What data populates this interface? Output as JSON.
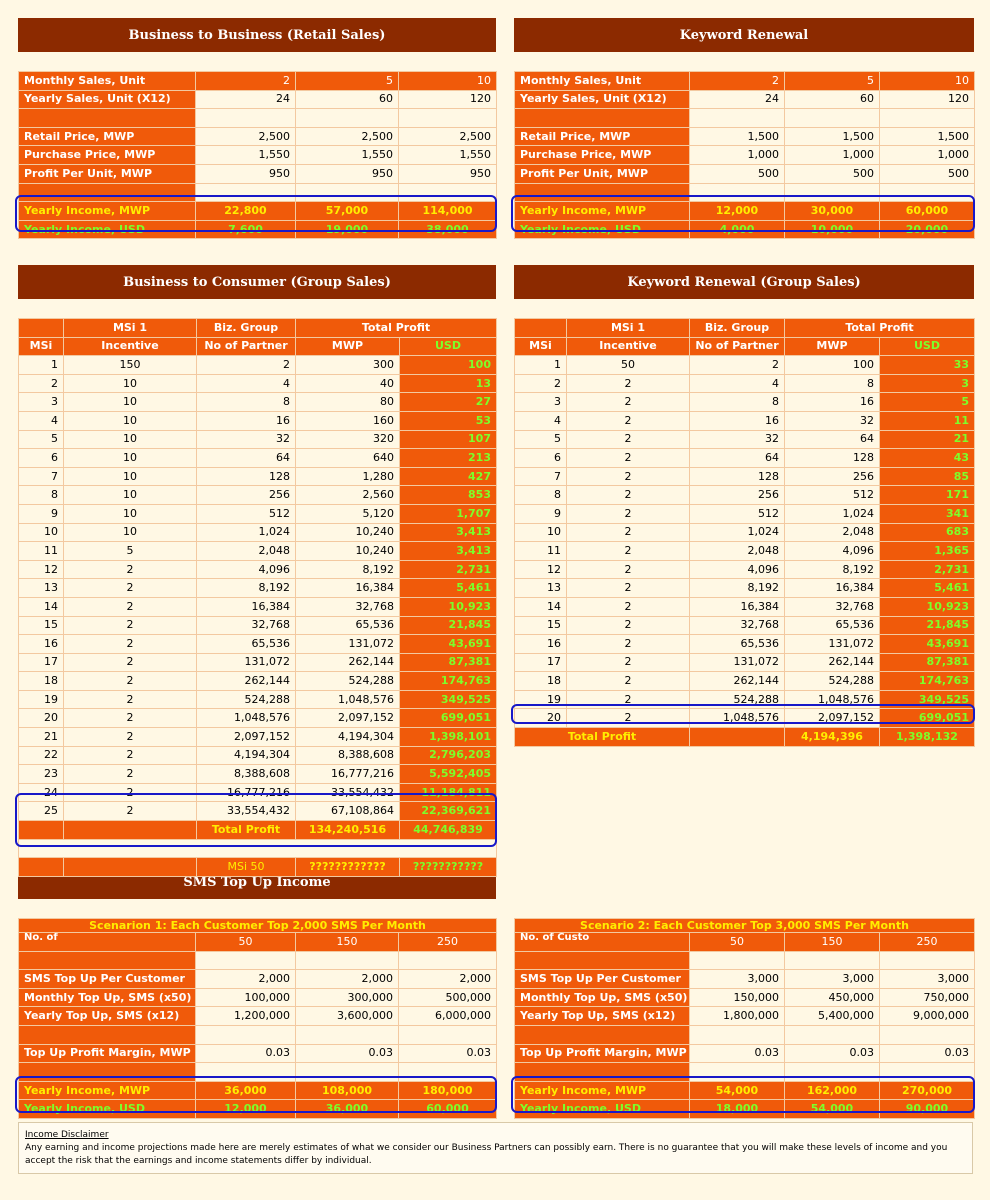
{
  "titles": {
    "b2b": "Business to Business (Retail Sales)",
    "kw": "Keyword Renewal",
    "b2c": "Business to Consumer (Group Sales)",
    "kwg": "Keyword Renewal (Group Sales)",
    "sms": "SMS Top Up Income"
  },
  "b2b": {
    "monthly_label": "Monthly Sales, Unit",
    "monthly": [
      "2",
      "5",
      "10"
    ],
    "yearly_label": "Yearly Sales, Unit (X12)",
    "yearly": [
      "24",
      "60",
      "120"
    ],
    "retail_label": "Retail Price, MWP",
    "retail": [
      "2,500",
      "2,500",
      "2,500"
    ],
    "purchase_label": "Purchase Price, MWP",
    "purchase": [
      "1,550",
      "1,550",
      "1,550"
    ],
    "profit_label": "Profit Per Unit, MWP",
    "profit": [
      "950",
      "950",
      "950"
    ],
    "inc_mwp_label": "Yearly Income, MWP",
    "inc_mwp": [
      "22,800",
      "57,000",
      "114,000"
    ],
    "inc_usd_label": "Yearly Income, USD",
    "inc_usd": [
      "7,600",
      "19,000",
      "38,000"
    ]
  },
  "kw": {
    "monthly_label": "Monthly Sales, Unit",
    "monthly": [
      "2",
      "5",
      "10"
    ],
    "yearly_label": "Yearly Sales, Unit (X12)",
    "yearly": [
      "24",
      "60",
      "120"
    ],
    "retail_label": "Retail Price, MWP",
    "retail": [
      "1,500",
      "1,500",
      "1,500"
    ],
    "purchase_label": "Purchase Price, MWP",
    "purchase": [
      "1,000",
      "1,000",
      "1,000"
    ],
    "profit_label": "Profit Per Unit, MWP",
    "profit": [
      "500",
      "500",
      "500"
    ],
    "inc_mwp_label": "Yearly Income, MWP",
    "inc_mwp": [
      "12,000",
      "30,000",
      "60,000"
    ],
    "inc_usd_label": "Yearly Income, USD",
    "inc_usd": [
      "4,000",
      "10,000",
      "20,000"
    ]
  },
  "group_headers": {
    "msi": "MSi",
    "msi1": "MSi 1",
    "incentive": "Incentive",
    "biz": "Biz. Group",
    "partner": "No of Partner",
    "total": "Total Profit",
    "mwp": "MWP",
    "usd": "USD"
  },
  "b2c_rows": [
    [
      "1",
      "150",
      "2",
      "300",
      "100"
    ],
    [
      "2",
      "10",
      "4",
      "40",
      "13"
    ],
    [
      "3",
      "10",
      "8",
      "80",
      "27"
    ],
    [
      "4",
      "10",
      "16",
      "160",
      "53"
    ],
    [
      "5",
      "10",
      "32",
      "320",
      "107"
    ],
    [
      "6",
      "10",
      "64",
      "640",
      "213"
    ],
    [
      "7",
      "10",
      "128",
      "1,280",
      "427"
    ],
    [
      "8",
      "10",
      "256",
      "2,560",
      "853"
    ],
    [
      "9",
      "10",
      "512",
      "5,120",
      "1,707"
    ],
    [
      "10",
      "10",
      "1,024",
      "10,240",
      "3,413"
    ],
    [
      "11",
      "5",
      "2,048",
      "10,240",
      "3,413"
    ],
    [
      "12",
      "2",
      "4,096",
      "8,192",
      "2,731"
    ],
    [
      "13",
      "2",
      "8,192",
      "16,384",
      "5,461"
    ],
    [
      "14",
      "2",
      "16,384",
      "32,768",
      "10,923"
    ],
    [
      "15",
      "2",
      "32,768",
      "65,536",
      "21,845"
    ],
    [
      "16",
      "2",
      "65,536",
      "131,072",
      "43,691"
    ],
    [
      "17",
      "2",
      "131,072",
      "262,144",
      "87,381"
    ],
    [
      "18",
      "2",
      "262,144",
      "524,288",
      "174,763"
    ],
    [
      "19",
      "2",
      "524,288",
      "1,048,576",
      "349,525"
    ],
    [
      "20",
      "2",
      "1,048,576",
      "2,097,152",
      "699,051"
    ],
    [
      "21",
      "2",
      "2,097,152",
      "4,194,304",
      "1,398,101"
    ],
    [
      "22",
      "2",
      "4,194,304",
      "8,388,608",
      "2,796,203"
    ],
    [
      "23",
      "2",
      "8,388,608",
      "16,777,216",
      "5,592,405"
    ],
    [
      "24",
      "2",
      "16,777,216",
      "33,554,432",
      "11,184,811"
    ],
    [
      "25",
      "2",
      "33,554,432",
      "67,108,864",
      "22,369,621"
    ]
  ],
  "b2c_totals": {
    "total_label": "Total Profit",
    "total_mwp": "134,240,516",
    "total_usd": "44,746,839",
    "msi50_label": "MSi 50",
    "msi50_mwp": "????????????",
    "msi50_usd": "???????????"
  },
  "kwg_rows": [
    [
      "1",
      "50",
      "2",
      "100",
      "33"
    ],
    [
      "2",
      "2",
      "4",
      "8",
      "3"
    ],
    [
      "3",
      "2",
      "8",
      "16",
      "5"
    ],
    [
      "4",
      "2",
      "16",
      "32",
      "11"
    ],
    [
      "5",
      "2",
      "32",
      "64",
      "21"
    ],
    [
      "6",
      "2",
      "64",
      "128",
      "43"
    ],
    [
      "7",
      "2",
      "128",
      "256",
      "85"
    ],
    [
      "8",
      "2",
      "256",
      "512",
      "171"
    ],
    [
      "9",
      "2",
      "512",
      "1,024",
      "341"
    ],
    [
      "10",
      "2",
      "1,024",
      "2,048",
      "683"
    ],
    [
      "11",
      "2",
      "2,048",
      "4,096",
      "1,365"
    ],
    [
      "12",
      "2",
      "4,096",
      "8,192",
      "2,731"
    ],
    [
      "13",
      "2",
      "8,192",
      "16,384",
      "5,461"
    ],
    [
      "14",
      "2",
      "16,384",
      "32,768",
      "10,923"
    ],
    [
      "15",
      "2",
      "32,768",
      "65,536",
      "21,845"
    ],
    [
      "16",
      "2",
      "65,536",
      "131,072",
      "43,691"
    ],
    [
      "17",
      "2",
      "131,072",
      "262,144",
      "87,381"
    ],
    [
      "18",
      "2",
      "262,144",
      "524,288",
      "174,763"
    ],
    [
      "19",
      "2",
      "524,288",
      "1,048,576",
      "349,525"
    ],
    [
      "20",
      "2",
      "1,048,576",
      "2,097,152",
      "699,051"
    ]
  ],
  "kwg_totals": {
    "total_label": "Total Profit",
    "total_mwp": "4,194,396",
    "total_usd": "1,398,132"
  },
  "sms1": {
    "scenario": "Scenarion 1:  Each Customer Top 2,000 SMS Per Month",
    "corner": "No. of",
    "customers": [
      "50",
      "150",
      "250"
    ],
    "per_customer_label": "SMS Top Up Per Customer",
    "per_customer": [
      "2,000",
      "2,000",
      "2,000"
    ],
    "monthly_label": "Monthly Top Up, SMS (x50)",
    "monthly": [
      "100,000",
      "300,000",
      "500,000"
    ],
    "yearly_label": "Yearly Top Up, SMS (x12)",
    "yearly": [
      "1,200,000",
      "3,600,000",
      "6,000,000"
    ],
    "margin_label": "Top Up Profit Margin, MWP",
    "margin": [
      "0.03",
      "0.03",
      "0.03"
    ],
    "inc_mwp_label": "Yearly Income, MWP",
    "inc_mwp": [
      "36,000",
      "108,000",
      "180,000"
    ],
    "inc_usd_label": "Yearly Income, USD",
    "inc_usd": [
      "12,000",
      "36,000",
      "60,000"
    ]
  },
  "sms2": {
    "scenario": "Scenario 2:  Each Customer Top 3,000 SMS Per Month",
    "corner": "No. of Custo",
    "customers": [
      "50",
      "150",
      "250"
    ],
    "per_customer_label": "SMS Top Up Per Customer",
    "per_customer": [
      "3,000",
      "3,000",
      "3,000"
    ],
    "monthly_label": "Monthly Top Up, SMS (x50)",
    "monthly": [
      "150,000",
      "450,000",
      "750,000"
    ],
    "yearly_label": "Yearly Top Up, SMS (x12)",
    "yearly": [
      "1,800,000",
      "5,400,000",
      "9,000,000"
    ],
    "margin_label": "Top Up Profit Margin, MWP",
    "margin": [
      "0.03",
      "0.03",
      "0.03"
    ],
    "inc_mwp_label": "Yearly Income, MWP",
    "inc_mwp": [
      "54,000",
      "162,000",
      "270,000"
    ],
    "inc_usd_label": "Yearly Income, USD",
    "inc_usd": [
      "18,000",
      "54,000",
      "90,000"
    ]
  },
  "disclaimer": {
    "title": "Income Disclaimer",
    "text": "Any earning and income projections made here are merely estimates of what we  consider our Business Partners can possibly earn. There is no guarantee that you will make these levels of income and you accept the risk that the earnings and income statements differ by individual."
  },
  "colors": {
    "banner": "#8c2a00",
    "orange": "#f05a0a",
    "yellow": "#ffee00",
    "green": "#7dff2a",
    "highlight": "#1818c8",
    "page": "#fff8e4"
  }
}
